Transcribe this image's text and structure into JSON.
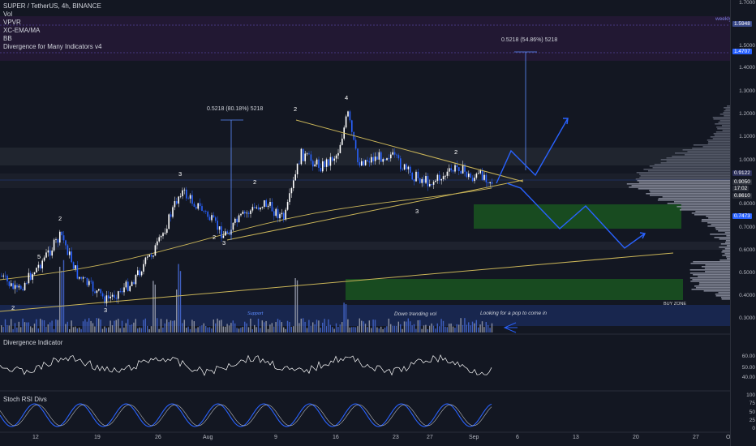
{
  "header": {
    "symbol_line": "SUPER / TetherUS, 4h, BINANCE",
    "indicators": [
      "Vol",
      "VPVR",
      "XC-EMA/MA",
      "BB",
      "Divergence for Many Indicators v4"
    ]
  },
  "badges": {
    "weekly": "weekly"
  },
  "price_axis": {
    "ticks": [
      "1.5000",
      "1.4000",
      "1.3000",
      "1.2000",
      "1.1000",
      "1.0000",
      "0.9000",
      "0.8000",
      "0.7000",
      "0.6000",
      "0.5000",
      "0.4000",
      "0.3000"
    ],
    "top_label": "1.7000",
    "highlight_labels": [
      {
        "text": "1.5948",
        "color": "#3a4a8a"
      },
      {
        "text": "1.4707",
        "color": "#2962ff"
      },
      {
        "text": "0.9122",
        "color": "#2a2e59"
      },
      {
        "text": "0.9050",
        "color": "#2a2e39"
      },
      {
        "text": "17:02",
        "color": "#2a2e39"
      },
      {
        "text": "0.8610",
        "color": "#2a2e39"
      },
      {
        "text": "0.7473",
        "color": "#2962ff"
      }
    ]
  },
  "measurements": [
    {
      "text": "0.5218 (80.18%) 5218"
    },
    {
      "text": "0.5218 (54.86%) 5218"
    }
  ],
  "wave_labels": [
    "2",
    "5",
    "2",
    "3",
    "3",
    "2",
    "2",
    "3",
    "2",
    "4",
    "2",
    "3",
    "2",
    "3"
  ],
  "notes": {
    "down_trending_vol": "Down trending vol",
    "looking_for_pop": "Looking for a pop to come in",
    "buy_zone": "BUY ZONE",
    "support": "Support"
  },
  "divergence_pane": {
    "title": "Divergence Indicator",
    "ticks": [
      "60.00",
      "50.00",
      "40.00"
    ]
  },
  "stoch_pane": {
    "title": "Stoch RSI Divs",
    "ticks": [
      "100",
      "75",
      "50",
      "25",
      "0"
    ]
  },
  "time_axis": {
    "labels": [
      "12",
      "19",
      "26",
      "Aug",
      "9",
      "16",
      "23",
      "27",
      "Sep",
      "6",
      "13",
      "20",
      "27",
      "Oct"
    ]
  },
  "colors": {
    "background": "#131722",
    "up": "#ffffff",
    "down": "#2962ff",
    "trendline": "#c9b458",
    "buy_zone": "#1b5e20",
    "projection": "#2962ff",
    "volume_band": "#1a2a5a"
  }
}
